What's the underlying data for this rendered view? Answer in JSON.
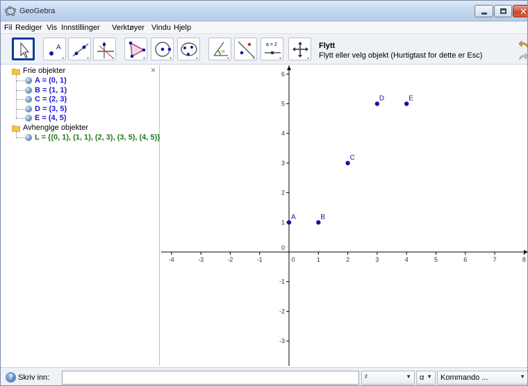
{
  "window": {
    "title": "GeoGebra"
  },
  "menu": [
    "Fil",
    "Rediger",
    "Vis",
    "Innstillinger",
    "Verktøyer",
    "Vindu",
    "Hjelp"
  ],
  "toolbar": {
    "slider_label": "a = 2",
    "tool_name": "Flytt",
    "tool_description": "Flytt eller velg objekt (Hurtigtast for dette er Esc)"
  },
  "algebra_view": {
    "free_header": "Frie objekter",
    "free_objects": [
      "A = (0, 1)",
      "B = (1, 1)",
      "C = (2, 3)",
      "D = (3, 5)",
      "E = (4, 5)"
    ],
    "dependent_header": "Avhengige objekter",
    "dependent_objects": [
      "L = {(0, 1), (1, 1), (2, 3), (3, 5), (4, 5)}"
    ],
    "close_glyph": "×"
  },
  "colors": {
    "free": "#1b1bd0",
    "dependent": "#1e7a1e",
    "point": "#1515a8",
    "active_tool": "#0c3a96"
  },
  "chart_data": {
    "type": "scatter",
    "x_ticks": [
      -4,
      -3,
      -2,
      -1,
      0,
      1,
      2,
      3,
      4,
      5,
      6,
      7,
      8
    ],
    "y_ticks": [
      -3,
      -2,
      -1,
      0,
      1,
      2,
      3,
      4,
      5,
      6
    ],
    "xlim": [
      -4.4,
      8.1
    ],
    "ylim": [
      -3.9,
      6.2
    ],
    "grid": false,
    "points": [
      {
        "name": "A",
        "x": 0,
        "y": 1
      },
      {
        "name": "B",
        "x": 1,
        "y": 1
      },
      {
        "name": "C",
        "x": 2,
        "y": 3
      },
      {
        "name": "D",
        "x": 3,
        "y": 5
      },
      {
        "name": "E",
        "x": 4,
        "y": 5
      }
    ]
  },
  "input_bar": {
    "label": "Skriv inn:",
    "value": "",
    "symbol_combo": "²",
    "greek_combo": "α",
    "command_combo": "Kommando ..."
  }
}
